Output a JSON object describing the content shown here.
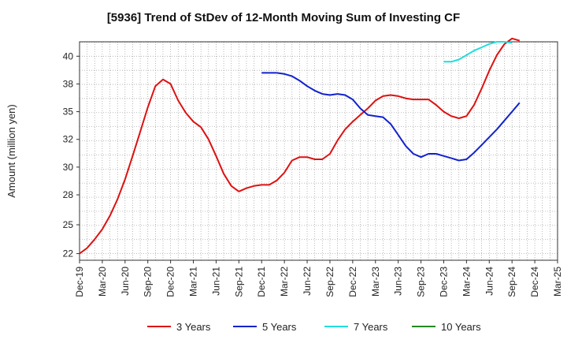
{
  "chart_data": {
    "type": "line",
    "title": "[5936]  Trend of StDev of 12-Month Moving Sum of Investing CF",
    "ylabel": "Amount (million yen)",
    "xlabel": "",
    "ylim": [
      21.6,
      41.3
    ],
    "yticks": [
      22,
      25,
      28,
      30,
      32,
      35,
      38,
      40
    ],
    "ytick_values": [
      22.2,
      24.8,
      27.5,
      30.0,
      32.5,
      35.0,
      37.5,
      40.0
    ],
    "x_range": [
      "2019-12",
      "2025-03"
    ],
    "xticks": [
      "Dec-19",
      "Mar-20",
      "Jun-20",
      "Sep-20",
      "Dec-20",
      "Mar-21",
      "Jun-21",
      "Sep-21",
      "Dec-21",
      "Mar-22",
      "Jun-22",
      "Sep-22",
      "Dec-22",
      "Mar-23",
      "Jun-23",
      "Sep-23",
      "Dec-23",
      "Mar-24",
      "Jun-24",
      "Sep-24",
      "Dec-24",
      "Mar-25"
    ],
    "grid": true,
    "legend_position": "bottom",
    "series": [
      {
        "name": "3 Years",
        "color": "#dd1111",
        "start": "2019-12",
        "values": [
          22.2,
          22.7,
          23.5,
          24.4,
          25.6,
          27.1,
          28.9,
          31.0,
          33.2,
          35.4,
          37.3,
          37.9,
          37.5,
          36.0,
          34.9,
          34.1,
          33.6,
          32.5,
          31.0,
          29.4,
          28.3,
          27.8,
          28.1,
          28.3,
          28.4,
          28.4,
          28.8,
          29.5,
          30.6,
          30.9,
          30.9,
          30.7,
          30.7,
          31.2,
          32.4,
          33.4,
          34.1,
          34.7,
          35.3,
          36.0,
          36.4,
          36.5,
          36.4,
          36.2,
          36.1,
          36.1,
          36.1,
          35.6,
          35.0,
          34.6,
          34.4,
          34.6,
          35.6,
          37.1,
          38.7,
          40.1,
          41.1,
          41.6,
          41.4
        ]
      },
      {
        "name": "5 Years",
        "color": "#1122cc",
        "start": "2021-12",
        "values": [
          38.5,
          38.5,
          38.5,
          38.4,
          38.2,
          37.8,
          37.3,
          36.9,
          36.6,
          36.5,
          36.6,
          36.5,
          36.1,
          35.3,
          34.7,
          34.6,
          34.5,
          33.9,
          32.9,
          31.9,
          31.2,
          30.9,
          31.2,
          31.2,
          31.0,
          30.8,
          30.6,
          30.7,
          31.3,
          32.0,
          32.7,
          33.4,
          34.2,
          35.0,
          35.8
        ]
      },
      {
        "name": "7 Years",
        "color": "#22dddd",
        "start": "2023-12",
        "values": [
          39.5,
          39.5,
          39.7,
          40.1,
          40.5,
          40.8,
          41.1,
          41.3,
          41.3,
          41.2
        ]
      },
      {
        "name": "10 Years",
        "color": "#228822",
        "start": "2023-12",
        "values": []
      }
    ]
  }
}
